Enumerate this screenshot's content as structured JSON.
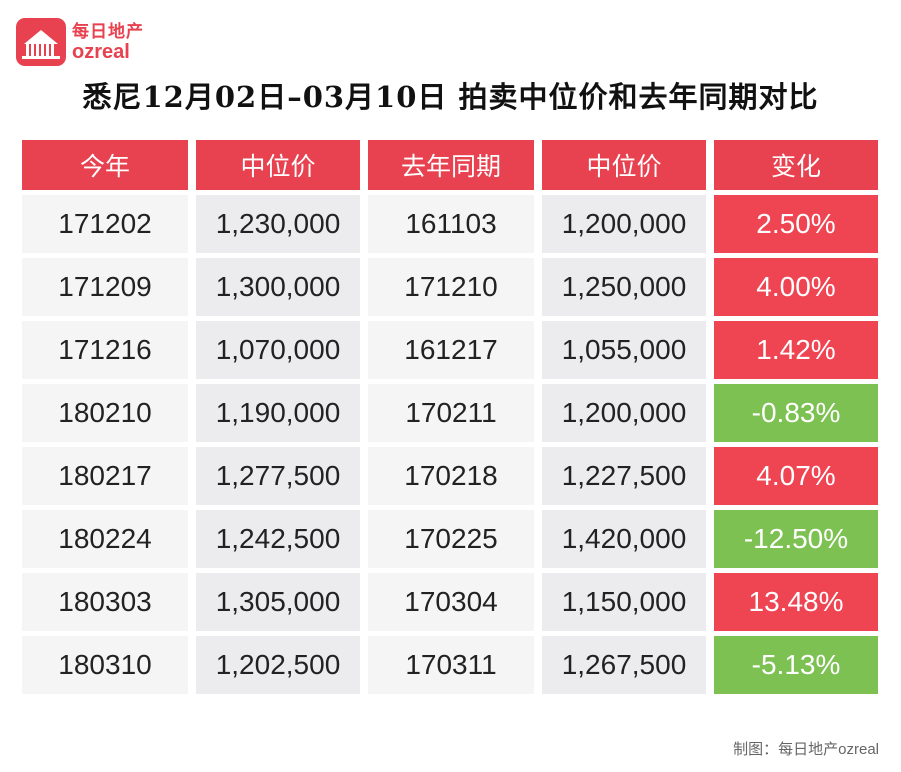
{
  "logo": {
    "cn": "每日地产",
    "en": "ozreal",
    "mark_text": "每日地产"
  },
  "title": "悉尼12月02日–03月10日 拍卖中位价和去年同期对比",
  "colors": {
    "header": "#e8414f",
    "increase": "#ef4452",
    "decrease": "#7dc152"
  },
  "chart_data": {
    "type": "table",
    "title": "悉尼12月02日–03月10日 拍卖中位价和去年同期对比",
    "columns": [
      "今年",
      "中位价",
      "去年同期",
      "中位价",
      "变化"
    ],
    "rows": [
      {
        "this_year": "171202",
        "median": "1,230,000",
        "last_year": "161103",
        "last_median": "1,200,000",
        "change": "2.50%",
        "trend": "up"
      },
      {
        "this_year": "171209",
        "median": "1,300,000",
        "last_year": "171210",
        "last_median": "1,250,000",
        "change": "4.00%",
        "trend": "up"
      },
      {
        "this_year": "171216",
        "median": "1,070,000",
        "last_year": "161217",
        "last_median": "1,055,000",
        "change": "1.42%",
        "trend": "up"
      },
      {
        "this_year": "180210",
        "median": "1,190,000",
        "last_year": "170211",
        "last_median": "1,200,000",
        "change": "-0.83%",
        "trend": "down"
      },
      {
        "this_year": "180217",
        "median": "1,277,500",
        "last_year": "170218",
        "last_median": "1,227,500",
        "change": "4.07%",
        "trend": "up"
      },
      {
        "this_year": "180224",
        "median": "1,242,500",
        "last_year": "170225",
        "last_median": "1,420,000",
        "change": "-12.50%",
        "trend": "down"
      },
      {
        "this_year": "180303",
        "median": "1,305,000",
        "last_year": "170304",
        "last_median": "1,150,000",
        "change": "13.48%",
        "trend": "up"
      },
      {
        "this_year": "180310",
        "median": "1,202,500",
        "last_year": "170311",
        "last_median": "1,267,500",
        "change": "-5.13%",
        "trend": "down"
      }
    ]
  },
  "credit": "制图：每日地产ozreal"
}
